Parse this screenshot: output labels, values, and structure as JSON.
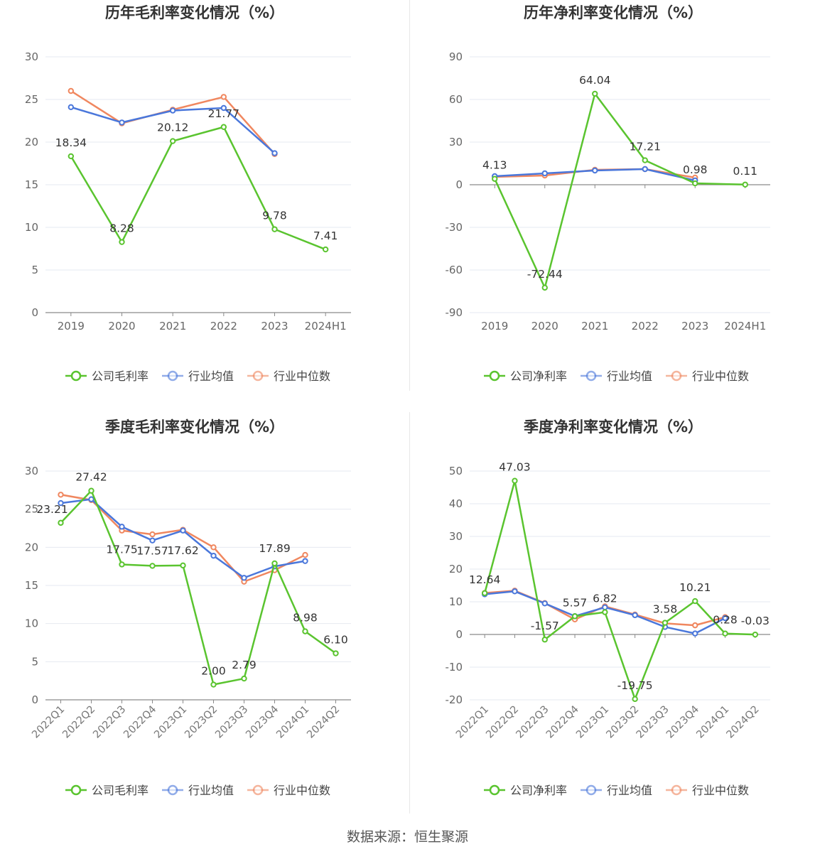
{
  "colors": {
    "company": "#5ac42f",
    "industry_avg": "#4a77db",
    "industry_median": "#f0875f"
  },
  "legend_labels": {
    "gross": [
      "公司毛利率",
      "行业均值",
      "行业中位数"
    ],
    "net": [
      "公司净利率",
      "行业均值",
      "行业中位数"
    ]
  },
  "footer": "数据来源：恒生聚源",
  "chart_data": [
    {
      "id": "annual-gross",
      "type": "line",
      "title": "历年毛利率变化情况（%）",
      "categories": [
        "2019",
        "2020",
        "2021",
        "2022",
        "2023",
        "2024H1"
      ],
      "ylim": [
        0,
        30
      ],
      "yticks": [
        0,
        5,
        10,
        15,
        20,
        25,
        30
      ],
      "series": [
        {
          "name": "公司毛利率",
          "values": [
            18.34,
            8.28,
            20.12,
            21.77,
            9.78,
            7.41
          ],
          "labels": [
            "18.34",
            "8.28",
            "20.12",
            "21.77",
            "9.78",
            "7.41"
          ]
        },
        {
          "name": "行业均值",
          "values": [
            24.1,
            22.3,
            23.7,
            24.0,
            18.7,
            null
          ]
        },
        {
          "name": "行业中位数",
          "values": [
            26.0,
            22.2,
            23.8,
            25.3,
            18.6,
            null
          ]
        }
      ]
    },
    {
      "id": "annual-net",
      "type": "line",
      "title": "历年净利率变化情况（%）",
      "categories": [
        "2019",
        "2020",
        "2021",
        "2022",
        "2023",
        "2024H1"
      ],
      "ylim": [
        -90,
        90
      ],
      "yticks": [
        -90,
        -60,
        -30,
        0,
        30,
        60,
        90
      ],
      "series": [
        {
          "name": "公司净利率",
          "values": [
            4.13,
            -72.44,
            64.04,
            17.21,
            0.98,
            0.11
          ],
          "labels": [
            "4.13",
            "-72.44",
            "64.04",
            "17.21",
            "0.98",
            "0.11"
          ]
        },
        {
          "name": "行业均值",
          "values": [
            6.0,
            8.0,
            10.0,
            11.0,
            3.0,
            null
          ]
        },
        {
          "name": "行业中位数",
          "values": [
            5.5,
            6.5,
            10.5,
            11.0,
            5.0,
            null
          ]
        }
      ]
    },
    {
      "id": "quarterly-gross",
      "type": "line",
      "title": "季度毛利率变化情况（%）",
      "categories": [
        "2022Q1",
        "2022Q2",
        "2022Q3",
        "2022Q4",
        "2023Q1",
        "2023Q2",
        "2023Q3",
        "2023Q4",
        "2024Q1",
        "2024Q2"
      ],
      "ylim": [
        0,
        30
      ],
      "yticks": [
        0,
        5,
        10,
        15,
        20,
        25,
        30
      ],
      "series": [
        {
          "name": "公司毛利率",
          "values": [
            23.21,
            27.42,
            17.75,
            17.57,
            17.62,
            2.0,
            2.79,
            17.89,
            8.98,
            6.1
          ],
          "labels": [
            "23.21",
            "27.42",
            "17.75",
            "17.57",
            "17.62",
            "2.00",
            "2.79",
            "17.89",
            "8.98",
            "6.10"
          ]
        },
        {
          "name": "行业均值",
          "values": [
            25.8,
            26.3,
            22.7,
            20.9,
            22.2,
            18.9,
            16.0,
            17.5,
            18.2,
            null
          ]
        },
        {
          "name": "行业中位数",
          "values": [
            26.9,
            26.2,
            22.2,
            21.7,
            22.3,
            20.0,
            15.5,
            17.0,
            19.0,
            null
          ]
        }
      ]
    },
    {
      "id": "quarterly-net",
      "type": "line",
      "title": "季度净利率变化情况（%）",
      "categories": [
        "2022Q1",
        "2022Q2",
        "2022Q3",
        "2022Q4",
        "2023Q1",
        "2023Q2",
        "2023Q3",
        "2023Q4",
        "2024Q1",
        "2024Q2"
      ],
      "ylim": [
        -20,
        50
      ],
      "yticks": [
        -20,
        -10,
        0,
        10,
        20,
        30,
        40,
        50
      ],
      "series": [
        {
          "name": "公司净利率",
          "values": [
            12.64,
            47.03,
            -1.57,
            5.57,
            6.82,
            -19.75,
            3.58,
            10.21,
            0.28,
            -0.03
          ],
          "labels": [
            "12.64",
            "47.03",
            "-1.57",
            "5.57",
            "6.82",
            "-19.75",
            "3.58",
            "10.21",
            "0.28",
            "-0.03"
          ]
        },
        {
          "name": "行业均值",
          "values": [
            12.3,
            13.2,
            9.5,
            5.6,
            8.3,
            5.9,
            2.3,
            0.3,
            5.0,
            null
          ]
        },
        {
          "name": "行业中位数",
          "values": [
            12.7,
            13.4,
            9.6,
            4.6,
            8.6,
            6.1,
            3.4,
            2.8,
            5.3,
            null
          ]
        }
      ]
    }
  ]
}
